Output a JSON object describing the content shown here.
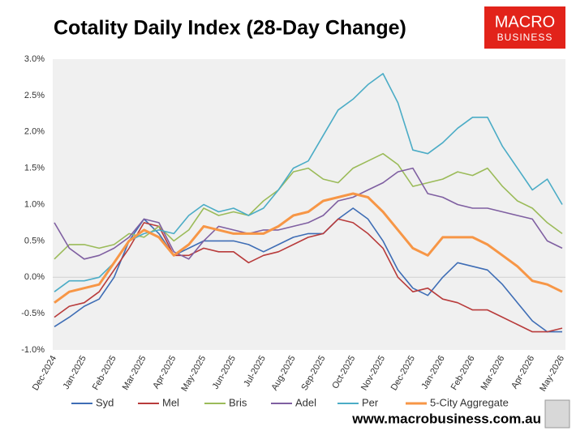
{
  "chart_data": {
    "type": "line",
    "title": "Cotality Daily Index (28-Day Change)",
    "logo": {
      "line1": "MACRO",
      "line2": "BUSINESS"
    },
    "source": "www.macrobusiness.com.au",
    "categories": [
      "Dec-2024",
      null,
      "Jan-2025",
      null,
      "Feb-2025",
      null,
      "Mar-2025",
      null,
      "Apr-2025",
      null,
      "May-2025",
      null,
      "Jun-2025",
      null,
      "Jul-2025",
      null,
      "Aug-2025",
      null,
      "Sep-2025",
      null,
      "Oct-2025",
      null,
      "Nov-2025",
      null,
      "Dec-2025",
      null,
      "Jan-2026",
      null,
      "Feb-2026",
      null,
      "Mar-2026",
      null,
      "Apr-2026",
      null,
      "May-2026"
    ],
    "series": [
      {
        "name": "Syd",
        "color": "#3e6db5",
        "values": [
          -0.68,
          -0.55,
          -0.4,
          -0.3,
          0.0,
          0.5,
          0.8,
          0.6,
          0.3,
          0.4,
          0.5,
          0.5,
          0.5,
          0.45,
          0.35,
          0.45,
          0.55,
          0.6,
          0.6,
          0.8,
          0.95,
          0.8,
          0.5,
          0.1,
          -0.15,
          -0.25,
          0.0,
          0.2,
          0.15,
          0.1,
          -0.1,
          -0.35,
          -0.6,
          -0.75,
          -0.75
        ]
      },
      {
        "name": "Mel",
        "color": "#b83b3b",
        "values": [
          -0.55,
          -0.4,
          -0.35,
          -0.2,
          0.1,
          0.4,
          0.75,
          0.7,
          0.3,
          0.3,
          0.4,
          0.35,
          0.35,
          0.2,
          0.3,
          0.35,
          0.45,
          0.55,
          0.6,
          0.8,
          0.75,
          0.6,
          0.4,
          0.0,
          -0.2,
          -0.15,
          -0.3,
          -0.35,
          -0.45,
          -0.45,
          -0.55,
          -0.65,
          -0.75,
          -0.75,
          -0.7
        ]
      },
      {
        "name": "Bris",
        "color": "#9bbb59",
        "values": [
          0.25,
          0.45,
          0.45,
          0.4,
          0.45,
          0.6,
          0.55,
          0.7,
          0.5,
          0.65,
          0.95,
          0.85,
          0.9,
          0.85,
          1.05,
          1.2,
          1.45,
          1.5,
          1.35,
          1.3,
          1.5,
          1.6,
          1.7,
          1.55,
          1.25,
          1.3,
          1.35,
          1.45,
          1.4,
          1.5,
          1.25,
          1.05,
          0.95,
          0.75,
          0.6
        ]
      },
      {
        "name": "Adel",
        "color": "#7f5fa1",
        "values": [
          0.75,
          0.4,
          0.25,
          0.3,
          0.4,
          0.55,
          0.8,
          0.75,
          0.35,
          0.25,
          0.5,
          0.7,
          0.65,
          0.6,
          0.65,
          0.65,
          0.7,
          0.75,
          0.85,
          1.05,
          1.1,
          1.2,
          1.3,
          1.45,
          1.5,
          1.15,
          1.1,
          1.0,
          0.95,
          0.95,
          0.9,
          0.85,
          0.8,
          0.5,
          0.4
        ]
      },
      {
        "name": "Per",
        "color": "#4bacc6",
        "values": [
          -0.2,
          -0.05,
          -0.05,
          0.0,
          0.2,
          0.5,
          0.6,
          0.65,
          0.6,
          0.85,
          1.0,
          0.9,
          0.95,
          0.85,
          0.95,
          1.2,
          1.5,
          1.6,
          1.95,
          2.3,
          2.45,
          2.65,
          2.8,
          2.4,
          1.75,
          1.7,
          1.85,
          2.05,
          2.2,
          2.2,
          1.8,
          1.5,
          1.2,
          1.35,
          1.0
        ]
      },
      {
        "name": "5-City Aggregate",
        "color": "#f79646",
        "values": [
          -0.35,
          -0.2,
          -0.15,
          -0.1,
          0.2,
          0.5,
          0.65,
          0.55,
          0.3,
          0.45,
          0.7,
          0.65,
          0.6,
          0.6,
          0.6,
          0.7,
          0.85,
          0.9,
          1.05,
          1.1,
          1.15,
          1.1,
          0.9,
          0.65,
          0.4,
          0.3,
          0.55,
          0.55,
          0.55,
          0.45,
          0.3,
          0.15,
          -0.05,
          -0.1,
          -0.2
        ]
      }
    ],
    "ylim": [
      -1.0,
      3.0
    ],
    "yticks": [
      {
        "value": -1.0,
        "label": "-1.0%"
      },
      {
        "value": -0.5,
        "label": "-0.5%"
      },
      {
        "value": 0.0,
        "label": "0.0%"
      },
      {
        "value": 0.5,
        "label": "0.5%"
      },
      {
        "value": 1.0,
        "label": "1.0%"
      },
      {
        "value": 1.5,
        "label": "1.5%"
      },
      {
        "value": 2.0,
        "label": "2.0%"
      },
      {
        "value": 2.5,
        "label": "2.5%"
      },
      {
        "value": 3.0,
        "label": "3.0%"
      }
    ],
    "zero_line": true
  }
}
